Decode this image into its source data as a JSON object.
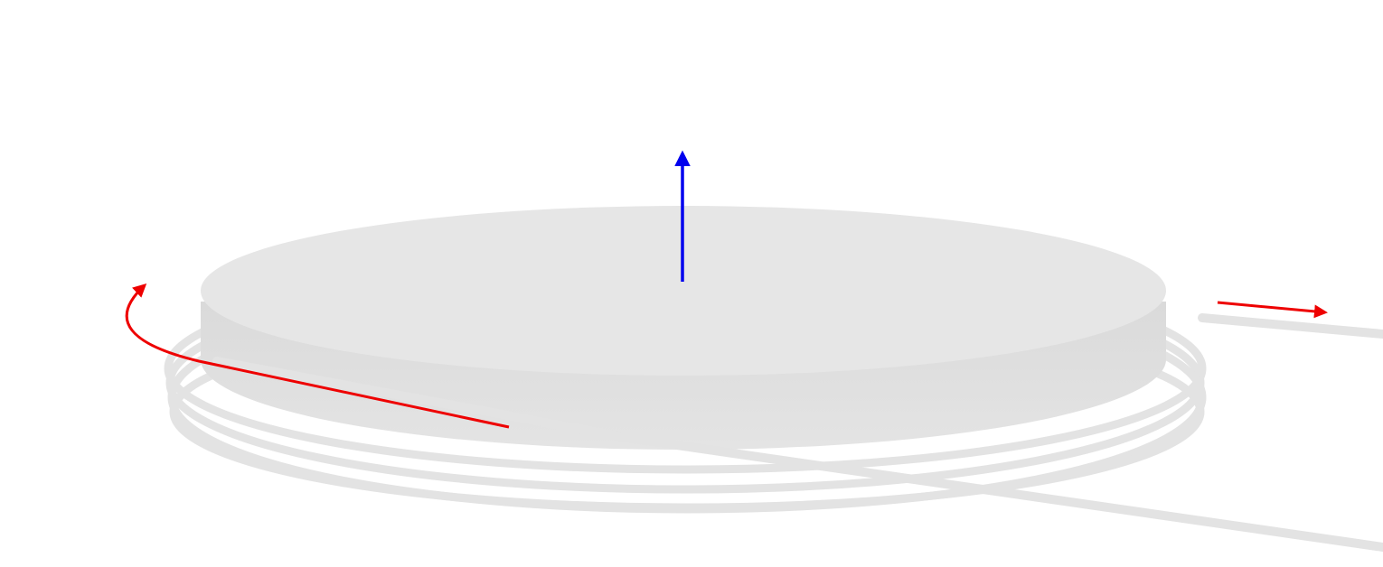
{
  "diagram": {
    "subject": "coil",
    "parts": [
      "disk",
      "wire-coil",
      "lead-wire",
      "normal-arrow",
      "circulation-arrow",
      "direction-arrow"
    ],
    "colors": {
      "background": "#ffffff",
      "disk_top": "#e6e6e6",
      "disk_side": "#dedede",
      "wire": "#e3e3e3",
      "normal_arrow": "#0000ee",
      "red_arrows": "#ee0000"
    },
    "coil_turns": 4
  }
}
